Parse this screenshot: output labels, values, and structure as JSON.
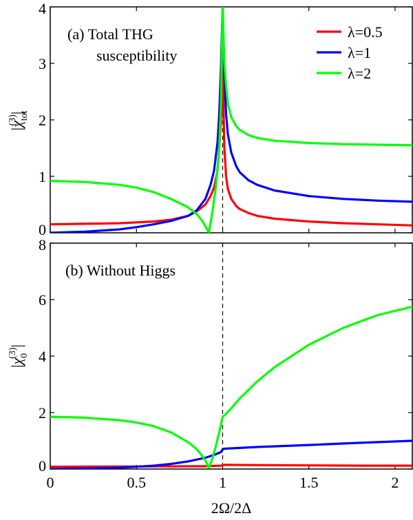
{
  "colors": {
    "red": "#ff0000",
    "blue": "#0000ff",
    "green": "#00ff00"
  },
  "xlabel": "2Ω/2Δ",
  "legend": [
    {
      "label": "λ=0.5",
      "color": "#ff0000"
    },
    {
      "label": "λ=1",
      "color": "#0000ff"
    },
    {
      "label": "λ=2",
      "color": "#00ff00"
    }
  ],
  "chart_data": [
    {
      "type": "line",
      "panel_title": [
        "(a) Total THG",
        "susceptibility"
      ],
      "ylabel": "|χ_tot^(3)|",
      "xlim": [
        0,
        2.1
      ],
      "ylim": [
        0,
        4
      ],
      "xticks": [
        "0",
        "0.5",
        "1",
        "1.5",
        "2"
      ],
      "xtick_values": [
        0,
        0.5,
        1,
        1.5,
        2
      ],
      "yticks": [
        "0",
        "1",
        "2",
        "3",
        "4"
      ],
      "ytick_values": [
        0,
        1,
        2,
        3,
        4
      ],
      "vline_x": 1,
      "legend_position": "top-right",
      "series": [
        {
          "name": "λ=0.5",
          "color": "#ff0000",
          "x": [
            0,
            0.2,
            0.4,
            0.6,
            0.7,
            0.8,
            0.85,
            0.9,
            0.93,
            0.95,
            0.97,
            0.98,
            0.99,
            0.995,
            1.0,
            1.005,
            1.01,
            1.02,
            1.03,
            1.05,
            1.08,
            1.1,
            1.15,
            1.2,
            1.3,
            1.5,
            1.7,
            1.9,
            2.1
          ],
          "y": [
            0.15,
            0.16,
            0.17,
            0.2,
            0.23,
            0.3,
            0.38,
            0.5,
            0.65,
            0.8,
            1.1,
            1.5,
            2.0,
            2.5,
            3.0,
            2.2,
            1.5,
            1.0,
            0.78,
            0.6,
            0.47,
            0.42,
            0.35,
            0.3,
            0.25,
            0.2,
            0.17,
            0.15,
            0.13
          ]
        },
        {
          "name": "λ=1",
          "color": "#0000ff",
          "x": [
            0,
            0.2,
            0.4,
            0.5,
            0.6,
            0.7,
            0.8,
            0.85,
            0.9,
            0.93,
            0.95,
            0.97,
            0.98,
            0.99,
            1.0,
            1.005,
            1.01,
            1.02,
            1.03,
            1.05,
            1.08,
            1.1,
            1.15,
            1.2,
            1.3,
            1.5,
            1.7,
            1.9,
            2.1
          ],
          "y": [
            0.0,
            0.02,
            0.06,
            0.1,
            0.15,
            0.21,
            0.3,
            0.4,
            0.6,
            0.85,
            1.1,
            1.6,
            2.1,
            2.9,
            4.0,
            3.4,
            2.8,
            2.1,
            1.75,
            1.42,
            1.17,
            1.07,
            0.93,
            0.85,
            0.75,
            0.65,
            0.6,
            0.57,
            0.55
          ]
        },
        {
          "name": "λ=2",
          "color": "#00ff00",
          "x": [
            0,
            0.2,
            0.4,
            0.5,
            0.6,
            0.7,
            0.8,
            0.85,
            0.88,
            0.9,
            0.92,
            0.94,
            0.96,
            0.98,
            0.99,
            1.0,
            1.005,
            1.01,
            1.02,
            1.03,
            1.05,
            1.08,
            1.1,
            1.15,
            1.2,
            1.3,
            1.5,
            1.7,
            1.9,
            2.1
          ],
          "y": [
            0.92,
            0.9,
            0.85,
            0.8,
            0.72,
            0.6,
            0.45,
            0.33,
            0.22,
            0.12,
            0.0,
            0.35,
            0.8,
            1.5,
            2.3,
            4.0,
            3.5,
            3.0,
            2.6,
            2.3,
            2.05,
            1.88,
            1.82,
            1.73,
            1.68,
            1.63,
            1.59,
            1.57,
            1.56,
            1.55
          ]
        }
      ]
    },
    {
      "type": "line",
      "panel_title": [
        "(b) Without Higgs"
      ],
      "ylabel": "|χ_0^(3)|",
      "xlim": [
        0,
        2.1
      ],
      "ylim": [
        0,
        8
      ],
      "xticks": [
        "0",
        "0.5",
        "1",
        "1.5",
        "2"
      ],
      "xtick_values": [
        0,
        0.5,
        1,
        1.5,
        2
      ],
      "yticks": [
        "0",
        "2",
        "4",
        "6",
        "8"
      ],
      "ytick_values": [
        0,
        2,
        4,
        6,
        8
      ],
      "vline_x": 1,
      "series": [
        {
          "name": "λ=0.5",
          "color": "#ff0000",
          "x": [
            0,
            0.5,
            0.9,
            0.99,
            1.0,
            1.01,
            1.2,
            1.5,
            1.8,
            2.1
          ],
          "y": [
            0.08,
            0.09,
            0.1,
            0.12,
            0.14,
            0.15,
            0.14,
            0.13,
            0.12,
            0.12
          ]
        },
        {
          "name": "λ=1",
          "color": "#0000ff",
          "x": [
            0,
            0.2,
            0.4,
            0.5,
            0.6,
            0.7,
            0.8,
            0.9,
            0.95,
            0.99,
            1.0,
            1.01,
            1.2,
            1.5,
            1.8,
            2.1
          ],
          "y": [
            0.0,
            0.02,
            0.05,
            0.08,
            0.12,
            0.18,
            0.27,
            0.4,
            0.5,
            0.6,
            0.7,
            0.72,
            0.78,
            0.85,
            0.93,
            1.0
          ]
        },
        {
          "name": "λ=2",
          "color": "#00ff00",
          "x": [
            0,
            0.2,
            0.4,
            0.5,
            0.6,
            0.7,
            0.8,
            0.85,
            0.88,
            0.9,
            0.92,
            0.94,
            0.96,
            0.98,
            0.995,
            1.0,
            1.01,
            1.05,
            1.1,
            1.2,
            1.3,
            1.5,
            1.7,
            1.9,
            2.1
          ],
          "y": [
            1.85,
            1.82,
            1.73,
            1.65,
            1.52,
            1.3,
            0.95,
            0.7,
            0.48,
            0.3,
            0.05,
            0.35,
            0.8,
            1.3,
            1.7,
            1.85,
            1.9,
            2.15,
            2.5,
            3.1,
            3.6,
            4.4,
            5.0,
            5.45,
            5.75
          ]
        }
      ]
    }
  ]
}
